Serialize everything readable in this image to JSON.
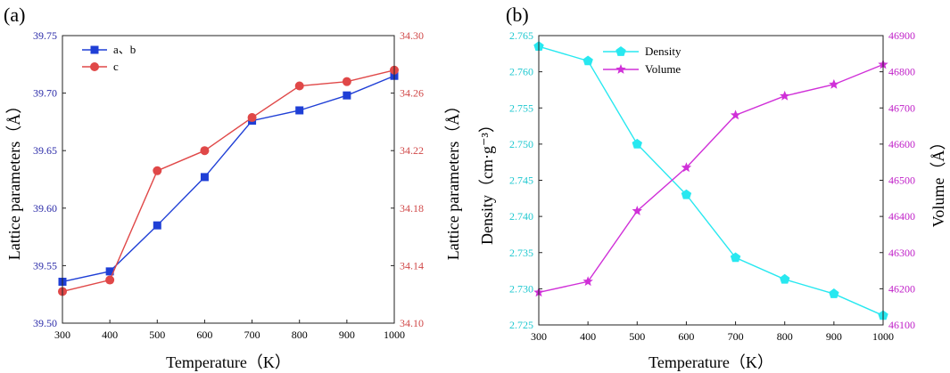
{
  "chart_data": [
    {
      "type": "line",
      "panel_label": "(a)",
      "xlabel": "Temperature（K）",
      "ylabel": "Lattice parameters（Å）",
      "ylabel_right": "Lattice parameters（Å）",
      "xlim": [
        300,
        1000
      ],
      "ylim": [
        39.5,
        39.75
      ],
      "ylim_right": [
        34.1,
        34.3
      ],
      "xticks": [
        300,
        400,
        500,
        600,
        700,
        800,
        900,
        1000
      ],
      "xtick_labels": [
        "300",
        "400",
        "500",
        "600",
        "700",
        "800",
        "900",
        "1000"
      ],
      "yticks": [
        39.5,
        39.55,
        39.6,
        39.65,
        39.7,
        39.75
      ],
      "ytick_labels": [
        "39.50",
        "39.55",
        "39.60",
        "39.65",
        "39.70",
        "39.75"
      ],
      "yticks_right": [
        34.1,
        34.14,
        34.18,
        34.22,
        34.26,
        34.3
      ],
      "ytick_labels_right": [
        "34.10",
        "34.14",
        "34.18",
        "34.22",
        "34.26",
        "34.30"
      ],
      "left_axis_color": "#2a2aa8",
      "right_axis_color": "#d04848",
      "legend_position": "top-left",
      "series": [
        {
          "name": "a、b",
          "axis": "left",
          "marker": "square",
          "color": "#1f3fd6",
          "x": [
            300,
            400,
            500,
            600,
            700,
            800,
            900,
            1000
          ],
          "values": [
            39.536,
            39.545,
            39.585,
            39.627,
            39.676,
            39.685,
            39.698,
            39.715
          ]
        },
        {
          "name": "c",
          "axis": "right",
          "marker": "circle",
          "color": "#e04848",
          "x": [
            300,
            400,
            500,
            600,
            700,
            800,
            900,
            1000
          ],
          "values": [
            34.122,
            34.13,
            34.206,
            34.22,
            34.243,
            34.265,
            34.268,
            34.276
          ]
        }
      ]
    },
    {
      "type": "line",
      "panel_label": "(b)",
      "xlabel": "Temperature（K）",
      "ylabel": "Density（cm·g⁻³）",
      "ylabel_right": "Volume（Å）",
      "xlim": [
        300,
        1000
      ],
      "ylim": [
        2.725,
        2.765
      ],
      "ylim_right": [
        46100,
        46900
      ],
      "xticks": [
        300,
        400,
        500,
        600,
        700,
        800,
        900,
        1000
      ],
      "xtick_labels": [
        "300",
        "400",
        "500",
        "600",
        "700",
        "800",
        "900",
        "1000"
      ],
      "yticks": [
        2.725,
        2.73,
        2.735,
        2.74,
        2.745,
        2.75,
        2.755,
        2.76,
        2.765
      ],
      "ytick_labels": [
        "2.725",
        "2.730",
        "2.735",
        "2.740",
        "2.745",
        "2.750",
        "2.755",
        "2.760",
        "2.765"
      ],
      "yticks_right": [
        46100,
        46200,
        46300,
        46400,
        46500,
        46600,
        46700,
        46800,
        46900
      ],
      "ytick_labels_right": [
        "46100",
        "46200",
        "46300",
        "46400",
        "46500",
        "46600",
        "46700",
        "46800",
        "46900"
      ],
      "left_axis_color": "#20c8d0",
      "right_axis_color": "#c020c8",
      "legend_position": "top-center",
      "series": [
        {
          "name": "Density",
          "axis": "left",
          "marker": "pentagon",
          "color": "#28e8f0",
          "x": [
            300,
            400,
            500,
            600,
            700,
            800,
            900,
            1000
          ],
          "values": [
            2.7635,
            2.7615,
            2.75,
            2.743,
            2.7343,
            2.7313,
            2.7293,
            2.7263
          ]
        },
        {
          "name": "Volume",
          "axis": "right",
          "marker": "star",
          "color": "#d030d8",
          "x": [
            300,
            400,
            500,
            600,
            700,
            800,
            900,
            1000
          ],
          "values": [
            46190,
            46220,
            46415,
            46535,
            46680,
            46733,
            46765,
            46820
          ]
        }
      ]
    }
  ]
}
